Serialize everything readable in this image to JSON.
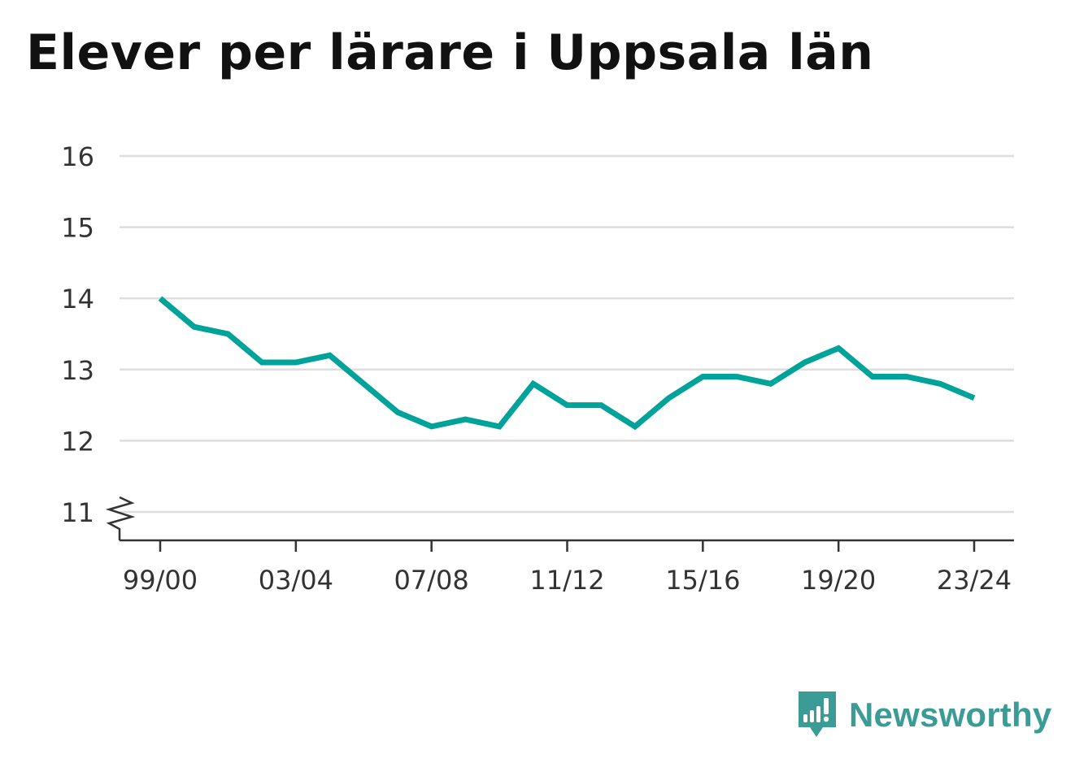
{
  "title": "Elever per lärare i Uppsala län",
  "brand": {
    "name": "Newsworthy",
    "icon": "newsworthy-logo-icon",
    "color": "#3a9c94"
  },
  "chart_data": {
    "type": "line",
    "title": "Elever per lärare i Uppsala län",
    "xlabel": "",
    "ylabel": "",
    "ylim": [
      10.6,
      16
    ],
    "y_ticks": [
      11,
      12,
      13,
      14,
      15,
      16
    ],
    "y_axis_break": true,
    "grid": true,
    "x_tick_labels": [
      "99/00",
      "03/04",
      "07/08",
      "11/12",
      "15/16",
      "19/20",
      "23/24"
    ],
    "categories": [
      "99/00",
      "00/01",
      "01/02",
      "02/03",
      "03/04",
      "04/05",
      "05/06",
      "06/07",
      "07/08",
      "08/09",
      "09/10",
      "10/11",
      "11/12",
      "12/13",
      "13/14",
      "14/15",
      "15/16",
      "16/17",
      "17/18",
      "18/19",
      "19/20",
      "20/21",
      "21/22",
      "22/23",
      "23/24"
    ],
    "series": [
      {
        "color": "#00a39a",
        "values": [
          14.0,
          13.6,
          13.5,
          13.1,
          13.1,
          13.2,
          12.8,
          12.4,
          12.2,
          12.3,
          12.2,
          12.8,
          12.5,
          12.5,
          12.2,
          12.6,
          12.9,
          12.9,
          12.8,
          13.1,
          13.3,
          12.9,
          12.9,
          12.8,
          12.6
        ]
      }
    ]
  }
}
